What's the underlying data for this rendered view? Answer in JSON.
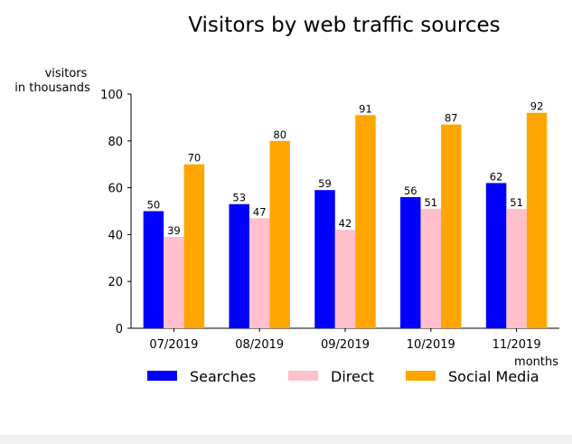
{
  "chart_data": {
    "type": "bar",
    "title": "Visitors by web traffic sources",
    "ylabel": [
      "visitors",
      "in thousands"
    ],
    "xlabel": "months",
    "categories": [
      "07/2019",
      "08/2019",
      "09/2019",
      "10/2019",
      "11/2019"
    ],
    "series": [
      {
        "name": "Searches",
        "color": "#0000ff",
        "values": [
          50,
          53,
          59,
          56,
          62
        ]
      },
      {
        "name": "Direct",
        "color": "#ffc0cb",
        "values": [
          39,
          47,
          42,
          51,
          51
        ]
      },
      {
        "name": "Social Media",
        "color": "#ffa500",
        "values": [
          70,
          80,
          91,
          87,
          92
        ]
      }
    ],
    "ylim": [
      0,
      100
    ],
    "yticks": [
      0,
      20,
      40,
      60,
      80,
      100
    ],
    "grid": false,
    "legend_position": "bottom",
    "data_labels": true
  }
}
